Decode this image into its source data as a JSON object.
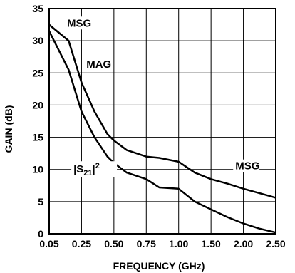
{
  "chart_data": {
    "type": "line",
    "xlabel": "FREQUENCY (GHz)",
    "ylabel": "GAIN (dB)",
    "ylim": [
      0,
      35
    ],
    "x_tick_labels": [
      "0.05",
      "0.25",
      "0.50",
      "0.75",
      "1.00",
      "1.50",
      "2.00",
      "2.50"
    ],
    "y_ticks": [
      0,
      5,
      10,
      15,
      20,
      25,
      30,
      35
    ],
    "grid": true,
    "legend": "none",
    "series": [
      {
        "name": "MSG/MAG",
        "line_color": "#000000",
        "x": [
          "0.05",
          "0.15",
          "0.25",
          "0.35",
          "0.45",
          "0.5",
          "0.6",
          "0.75",
          "0.9",
          "1.00",
          "1.25",
          "1.50",
          "1.75",
          "2.00",
          "2.25",
          "2.50"
        ],
        "points": [
          {
            "i": 0,
            "y": 32.5
          },
          {
            "i": 0.6,
            "y": 30.0
          },
          {
            "i": 1.0,
            "y": 23.5
          },
          {
            "i": 1.4,
            "y": 19.0
          },
          {
            "i": 1.8,
            "y": 15.5
          },
          {
            "i": 2.0,
            "y": 14.5
          },
          {
            "i": 2.4,
            "y": 13.0
          },
          {
            "i": 3.0,
            "y": 12.0
          },
          {
            "i": 3.4,
            "y": 11.8
          },
          {
            "i": 4.0,
            "y": 11.2
          },
          {
            "i": 4.5,
            "y": 9.5
          },
          {
            "i": 5.0,
            "y": 8.5
          },
          {
            "i": 5.5,
            "y": 7.8
          },
          {
            "i": 6.0,
            "y": 7.0
          },
          {
            "i": 6.5,
            "y": 6.3
          },
          {
            "i": 7.0,
            "y": 5.6
          }
        ]
      },
      {
        "name": "|S21|2",
        "line_color": "#000000",
        "points": [
          {
            "i": 0,
            "y": 31.5
          },
          {
            "i": 0.6,
            "y": 25.5
          },
          {
            "i": 1.0,
            "y": 19.0
          },
          {
            "i": 1.4,
            "y": 15.0
          },
          {
            "i": 1.8,
            "y": 12.0
          },
          {
            "i": 2.0,
            "y": 11.0
          },
          {
            "i": 2.4,
            "y": 9.5
          },
          {
            "i": 3.0,
            "y": 8.5
          },
          {
            "i": 3.4,
            "y": 7.2
          },
          {
            "i": 4.0,
            "y": 7.0
          },
          {
            "i": 4.5,
            "y": 5.0
          },
          {
            "i": 5.0,
            "y": 3.8
          },
          {
            "i": 5.5,
            "y": 2.6
          },
          {
            "i": 6.0,
            "y": 1.6
          },
          {
            "i": 6.5,
            "y": 0.8
          },
          {
            "i": 7.0,
            "y": 0.2
          }
        ]
      }
    ],
    "annotations": [
      {
        "text": "MSG",
        "xi": 0.55,
        "y": 32.2
      },
      {
        "text": "MAG",
        "xi": 1.15,
        "y": 25.8
      },
      {
        "text": "MSG",
        "xi": 5.75,
        "y": 10.0
      }
    ],
    "s21_label": {
      "base": "|S",
      "sub": "21",
      "mid": "|",
      "sup": "2",
      "xi": 0.75,
      "y": 9.5
    }
  }
}
